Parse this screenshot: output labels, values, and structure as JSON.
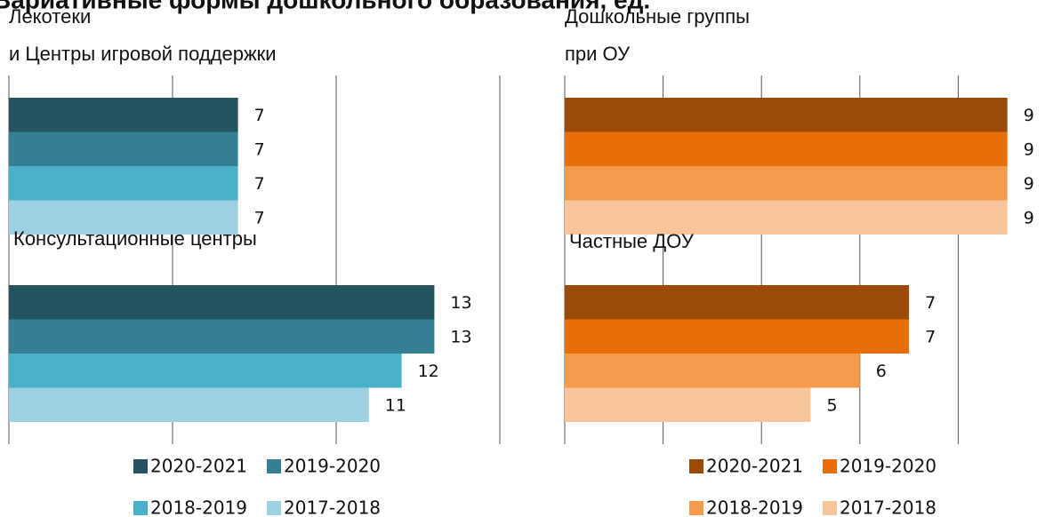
{
  "title": "Вариативные формы дошкольного образования, ед.",
  "chart_data": [
    {
      "type": "hbar",
      "title": [
        "Лекотеки",
        "и Центры игровой поддержки"
      ],
      "xlim": [
        0,
        15
      ],
      "xticks": [
        0,
        5,
        10,
        15
      ],
      "grid": true,
      "series": [
        {
          "name": "2020-2021",
          "color": "#23545f",
          "values": [
            7
          ]
        },
        {
          "name": "2019-2020",
          "color": "#347f91",
          "values": [
            7
          ]
        },
        {
          "name": "2018-2019",
          "color": "#4bb0c9",
          "values": [
            7
          ]
        },
        {
          "name": "2017-2018",
          "color": "#9dd0e0",
          "values": [
            7
          ]
        }
      ]
    },
    {
      "type": "hbar",
      "title": [
        "Консультационные центры"
      ],
      "xlim": [
        0,
        15
      ],
      "xticks": [
        0,
        5,
        10,
        15
      ],
      "grid": true,
      "series": [
        {
          "name": "2020-2021",
          "color": "#23545f",
          "values": [
            13
          ]
        },
        {
          "name": "2019-2020",
          "color": "#347f91",
          "values": [
            13
          ]
        },
        {
          "name": "2018-2019",
          "color": "#4bb0c9",
          "values": [
            12
          ]
        },
        {
          "name": "2017-2018",
          "color": "#9dd0e0",
          "values": [
            11
          ]
        }
      ]
    },
    {
      "type": "hbar",
      "title": [
        "Дошкольные группы",
        "при ОУ"
      ],
      "xlim": [
        0,
        10
      ],
      "xticks": [
        0,
        2,
        4,
        6,
        8
      ],
      "grid": true,
      "series": [
        {
          "name": "2020-2021",
          "color": "#9c4a08",
          "values": [
            9
          ]
        },
        {
          "name": "2019-2020",
          "color": "#e86e0a",
          "values": [
            9
          ]
        },
        {
          "name": "2018-2019",
          "color": "#f5994b",
          "values": [
            9
          ]
        },
        {
          "name": "2017-2018",
          "color": "#f8c59a",
          "values": [
            9
          ]
        }
      ]
    },
    {
      "type": "hbar",
      "title": [
        "Частные ДОУ"
      ],
      "xlim": [
        0,
        10
      ],
      "xticks": [
        0,
        2,
        4,
        6,
        8
      ],
      "grid": true,
      "series": [
        {
          "name": "2020-2021",
          "color": "#9c4a08",
          "values": [
            7
          ]
        },
        {
          "name": "2019-2020",
          "color": "#e86e0a",
          "values": [
            7
          ]
        },
        {
          "name": "2018-2019",
          "color": "#f5994b",
          "values": [
            6
          ]
        },
        {
          "name": "2017-2018",
          "color": "#f8c59a",
          "values": [
            5
          ]
        }
      ]
    }
  ]
}
